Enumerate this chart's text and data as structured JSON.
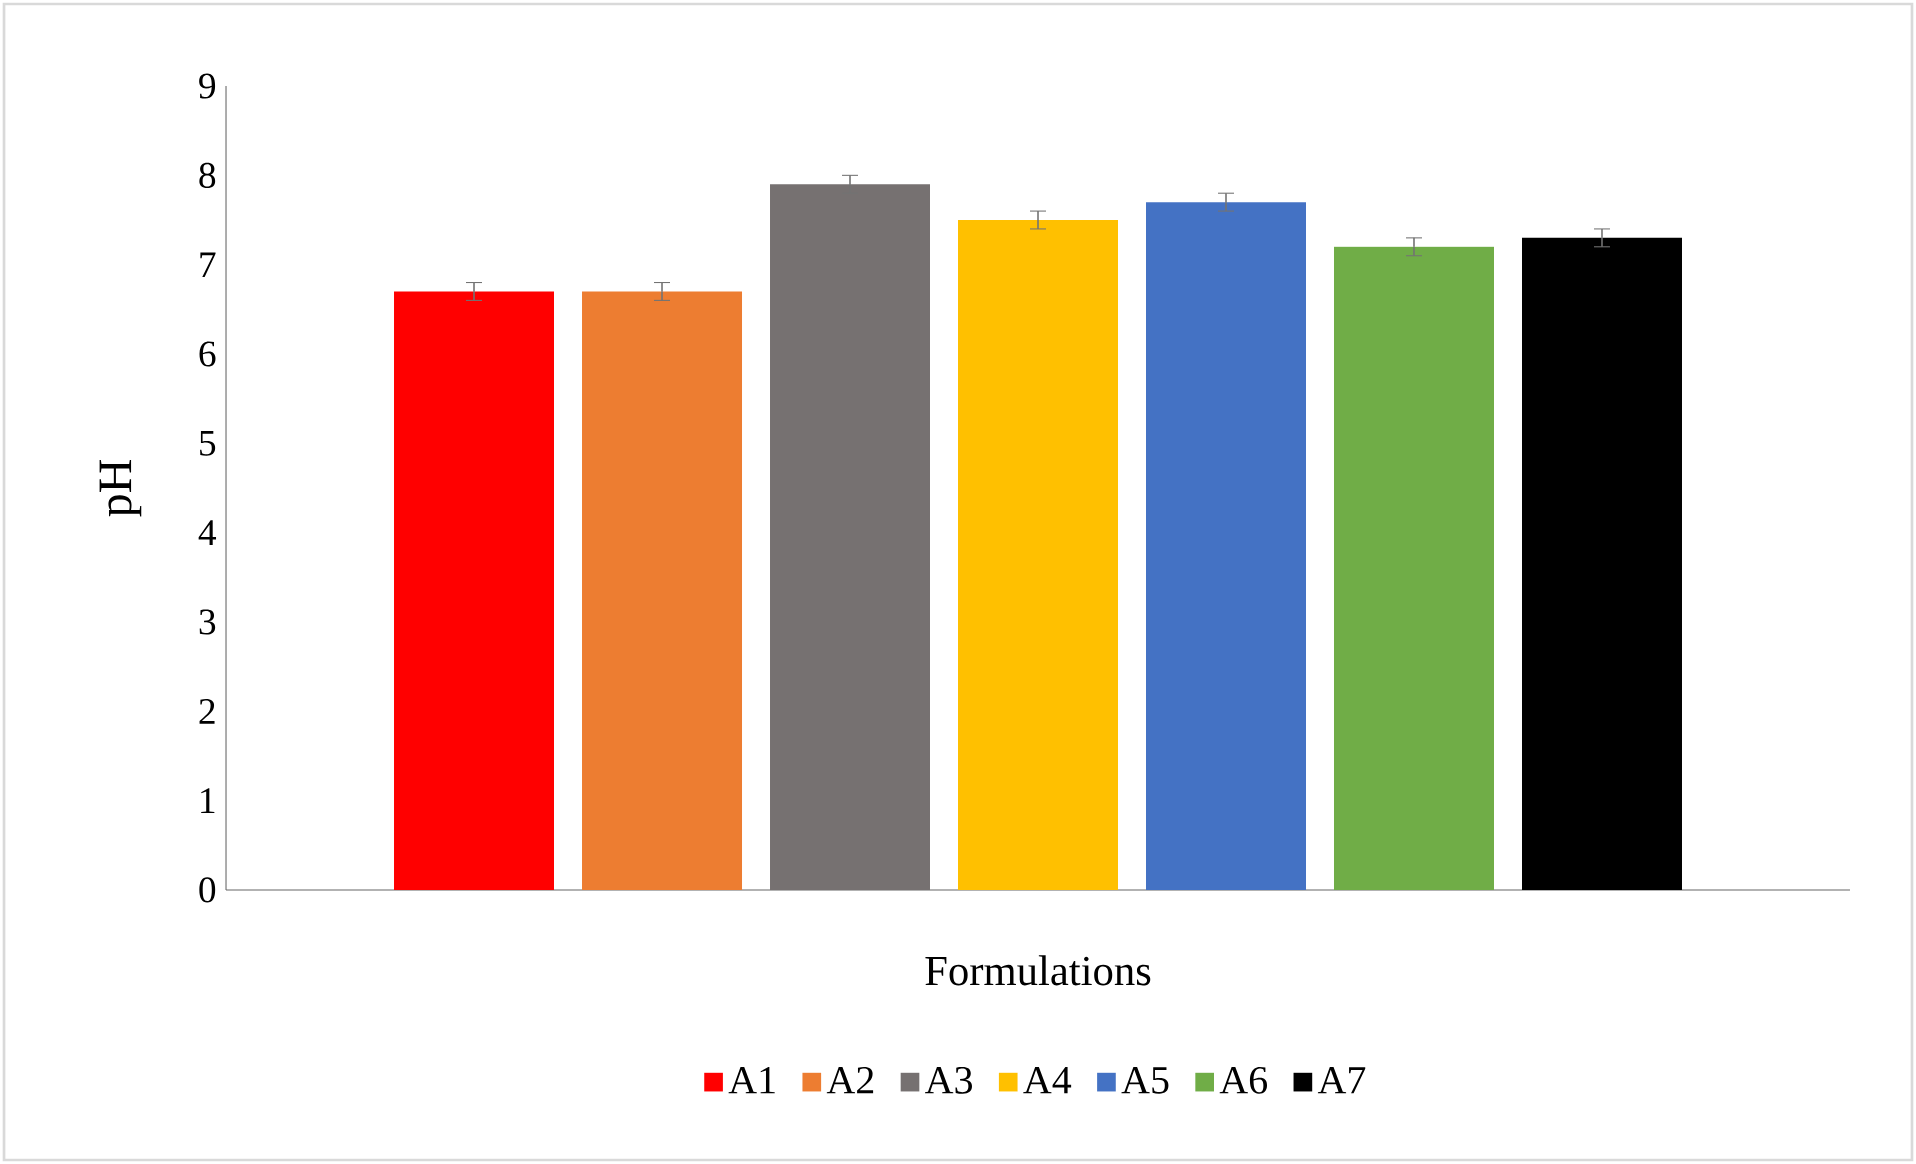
{
  "chart_data": {
    "type": "bar",
    "xlabel": "Formulations",
    "ylabel": "pH",
    "categories": [
      null
    ],
    "series": [
      {
        "name": "A1",
        "color": "#ff0000",
        "values": [
          6.7
        ],
        "errors": [
          0.1
        ]
      },
      {
        "name": "A2",
        "color": "#ed7d31",
        "values": [
          6.7
        ],
        "errors": [
          0.1
        ]
      },
      {
        "name": "A3",
        "color": "#767171",
        "values": [
          7.9
        ],
        "errors": [
          0.1
        ]
      },
      {
        "name": "A4",
        "color": "#ffc000",
        "values": [
          7.5
        ],
        "errors": [
          0.1
        ]
      },
      {
        "name": "A5",
        "color": "#4472c4",
        "values": [
          7.7
        ],
        "errors": [
          0.1
        ]
      },
      {
        "name": "A6",
        "color": "#70ad47",
        "values": [
          7.2
        ],
        "errors": [
          0.1
        ]
      },
      {
        "name": "A7",
        "color": "#000000",
        "values": [
          7.3
        ],
        "errors": [
          0.1
        ]
      }
    ],
    "ylim": [
      0,
      9
    ],
    "yticks": [
      0,
      1,
      2,
      3,
      4,
      5,
      6,
      7,
      8,
      9
    ],
    "legend": "bottom"
  }
}
